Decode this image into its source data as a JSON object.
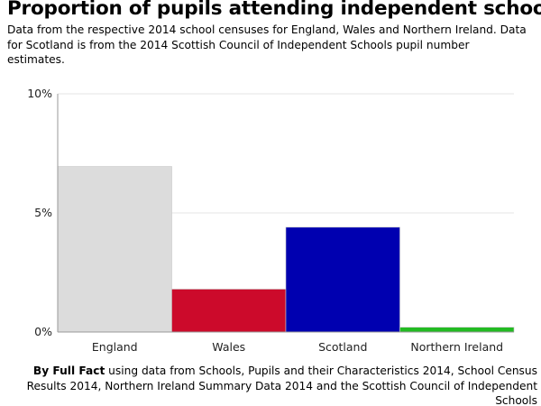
{
  "header": {
    "title": "Proportion of pupils attending independent schools",
    "subtitle": "Data from the respective 2014 school censuses for England, Wales and Northern Ireland. Data for Scotland is from the 2014 Scottish Council of Independent Schools pupil number estimates."
  },
  "footer": {
    "by": "By Full Fact",
    "text": " using data from Schools, Pupils and their Characteristics 2014, School Census Results 2014, Northern Ireland Summary Data 2014 and the Scottish Council of Independent Schools"
  },
  "chart_data": {
    "type": "bar",
    "title": "Proportion of pupils attending independent schools",
    "xlabel": "",
    "ylabel": "",
    "ylim": [
      0,
      10
    ],
    "yticks": [
      0,
      5,
      10
    ],
    "ytick_labels": [
      "0%",
      "5%",
      "10%"
    ],
    "categories": [
      "England",
      "Wales",
      "Scotland",
      "Northern Ireland"
    ],
    "values": [
      6.95,
      1.8,
      4.4,
      0.2
    ],
    "colors": [
      "#dcdcdc",
      "#cc0a2b",
      "#0000b0",
      "#22bb22"
    ],
    "grid": true,
    "legend": "none"
  }
}
